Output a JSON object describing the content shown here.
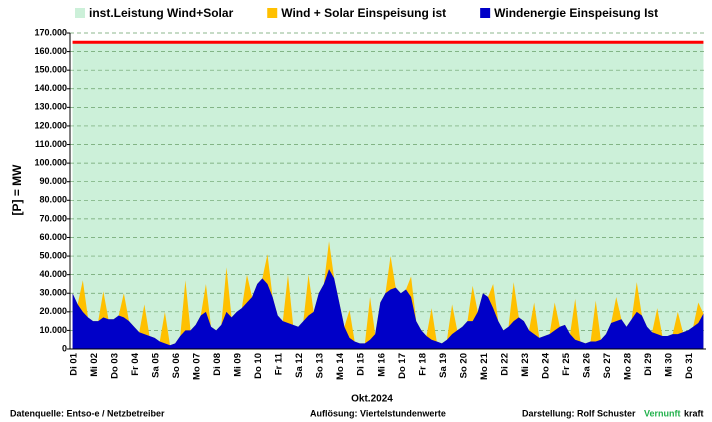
{
  "chart_data": {
    "type": "area",
    "y_label": "[P] =  MW",
    "x_label": "Okt.2024",
    "categories": [
      "Di 01",
      null,
      null,
      null,
      "Mi 02",
      null,
      null,
      null,
      "Do 03",
      null,
      null,
      null,
      "Fr 04",
      null,
      null,
      null,
      "Sa 05",
      null,
      null,
      null,
      "So 06",
      null,
      null,
      null,
      "Mo 07",
      null,
      null,
      null,
      "Di 08",
      null,
      null,
      null,
      "Mi 09",
      null,
      null,
      null,
      "Do 10",
      null,
      null,
      null,
      "Fr 11",
      null,
      null,
      null,
      "Sa 12",
      null,
      null,
      null,
      "So 13",
      null,
      null,
      null,
      "Mo 14",
      null,
      null,
      null,
      "Di 15",
      null,
      null,
      null,
      "Mi 16",
      null,
      null,
      null,
      "Do 17",
      null,
      null,
      null,
      "Fr 18",
      null,
      null,
      null,
      "Sa 19",
      null,
      null,
      null,
      "So 20",
      null,
      null,
      null,
      "Mo 21",
      null,
      null,
      null,
      "Di 22",
      null,
      null,
      null,
      "Mi 23",
      null,
      null,
      null,
      "Do 24",
      null,
      null,
      null,
      "Fr 25",
      null,
      null,
      null,
      "Sa 26",
      null,
      null,
      null,
      "So 27",
      null,
      null,
      null,
      "Mo 28",
      null,
      null,
      null,
      "Di 29",
      null,
      null,
      null,
      "Mi 30",
      null,
      null,
      null,
      "Do 31",
      null,
      null,
      null
    ],
    "series": [
      {
        "name": "inst.Leistung Wind+Solar",
        "color": "#ccf0d9",
        "line_color": "#ff0000",
        "values": [
          165000,
          165000,
          165000,
          165000,
          165000,
          165000,
          165000,
          165000,
          165000,
          165000,
          165000,
          165000,
          165000,
          165000,
          165000,
          165000,
          165000,
          165000,
          165000,
          165000,
          165000,
          165000,
          165000,
          165000,
          165000,
          165000,
          165000,
          165000,
          165000,
          165000,
          165000,
          165000,
          165000,
          165000,
          165000,
          165000,
          165000,
          165000,
          165000,
          165000,
          165000,
          165000,
          165000,
          165000,
          165000,
          165000,
          165000,
          165000,
          165000,
          165000,
          165000,
          165000,
          165000,
          165000,
          165000,
          165000,
          165000,
          165000,
          165000,
          165000,
          165000,
          165000,
          165000,
          165000,
          165000,
          165000,
          165000,
          165000,
          165000,
          165000,
          165000,
          165000,
          165000,
          165000,
          165000,
          165000,
          165000,
          165000,
          165000,
          165000,
          165000,
          165000,
          165000,
          165000,
          165000,
          165000,
          165000,
          165000,
          165000,
          165000,
          165000,
          165000,
          165000,
          165000,
          165000,
          165000,
          165000,
          165000,
          165000,
          165000,
          165000,
          165000,
          165000,
          165000,
          165000,
          165000,
          165000,
          165000,
          165000,
          165000,
          165000,
          165000,
          165000,
          165000,
          165000,
          165000,
          165000,
          165000,
          165000,
          165000,
          165000,
          165000,
          165000,
          165000
        ]
      },
      {
        "name": "Wind + Solar Einspeisung ist",
        "color": "#ffc000",
        "values": [
          30000,
          24000,
          37000,
          17000,
          15000,
          15000,
          31000,
          16000,
          16000,
          18000,
          30000,
          15000,
          12000,
          9000,
          24000,
          7000,
          6000,
          4000,
          20000,
          2000,
          3000,
          7000,
          37000,
          10000,
          13000,
          18000,
          35000,
          12000,
          10000,
          13000,
          44000,
          17000,
          20000,
          22000,
          40000,
          28000,
          35000,
          38000,
          51000,
          28000,
          18000,
          15000,
          40000,
          13000,
          12000,
          15000,
          40000,
          20000,
          30000,
          35000,
          58000,
          38000,
          25000,
          12000,
          21000,
          4000,
          3000,
          3000,
          28000,
          8000,
          25000,
          30000,
          50000,
          33000,
          30000,
          32000,
          39000,
          15000,
          10000,
          7000,
          22000,
          4000,
          3000,
          5000,
          24000,
          10000,
          12000,
          15000,
          34000,
          20000,
          30000,
          28000,
          35000,
          15000,
          10000,
          12000,
          36000,
          17000,
          15000,
          10000,
          25000,
          6000,
          7000,
          8000,
          25000,
          12000,
          13000,
          8000,
          27000,
          4000,
          3000,
          4000,
          26000,
          5000,
          8000,
          14000,
          28000,
          16000,
          12000,
          16000,
          36000,
          18000,
          12000,
          9000,
          22000,
          7000,
          7000,
          8000,
          20000,
          9000,
          10000,
          12000,
          25000,
          19000
        ]
      },
      {
        "name": "Windenergie Einspeisung Ist",
        "color": "#0000c8",
        "values": [
          30000,
          24000,
          20000,
          17000,
          15000,
          15000,
          17000,
          16000,
          16000,
          18000,
          17000,
          15000,
          12000,
          9000,
          8000,
          7000,
          6000,
          4000,
          3000,
          2000,
          3000,
          7000,
          10000,
          10000,
          13000,
          18000,
          20000,
          12000,
          10000,
          13000,
          20000,
          17000,
          20000,
          22000,
          25000,
          28000,
          35000,
          38000,
          35000,
          28000,
          18000,
          15000,
          14000,
          13000,
          12000,
          15000,
          18000,
          20000,
          30000,
          35000,
          43000,
          38000,
          25000,
          12000,
          6000,
          4000,
          3000,
          3000,
          5000,
          8000,
          25000,
          30000,
          32000,
          33000,
          30000,
          32000,
          28000,
          15000,
          10000,
          7000,
          5000,
          4000,
          3000,
          5000,
          8000,
          10000,
          12000,
          15000,
          15000,
          20000,
          30000,
          28000,
          22000,
          15000,
          10000,
          12000,
          15000,
          17000,
          15000,
          10000,
          8000,
          6000,
          7000,
          8000,
          10000,
          12000,
          13000,
          8000,
          5000,
          4000,
          3000,
          4000,
          4000,
          5000,
          8000,
          14000,
          15000,
          16000,
          12000,
          16000,
          20000,
          18000,
          12000,
          9000,
          8000,
          7000,
          7000,
          8000,
          8000,
          9000,
          10000,
          12000,
          14000,
          19000
        ]
      }
    ],
    "ylim": [
      0,
      170000
    ],
    "yticks": [
      0,
      {
        "value": 10000,
        "label": "10.000"
      },
      {
        "value": 20000,
        "label": "20.000"
      },
      {
        "value": 30000,
        "label": "30.000"
      },
      {
        "value": 40000,
        "label": "40.000"
      },
      {
        "value": 50000,
        "label": "50.000"
      },
      {
        "value": 60000,
        "label": "60.000"
      },
      {
        "value": 70000,
        "label": "70.000"
      },
      {
        "value": 80000,
        "label": "80.000"
      },
      {
        "value": 90000,
        "label": "90.000"
      },
      {
        "value": 100000,
        "label": "100.000"
      },
      {
        "value": 110000,
        "label": "110.000"
      },
      {
        "value": 120000,
        "label": "120.000"
      },
      {
        "value": 130000,
        "label": "130.000"
      },
      {
        "value": 140000,
        "label": "140.000"
      },
      {
        "value": 150000,
        "label": "150.000"
      },
      {
        "value": 160000,
        "label": "160.000"
      },
      {
        "value": 170000,
        "label": "170.000"
      }
    ],
    "grid": true,
    "legend": "top"
  },
  "footer": {
    "source": "Datenquelle:  Entso-e  / Netzbetreiber",
    "resolution": "Auflösung: Viertelstundenwerte",
    "author": "Darstellung:  Rolf Schuster",
    "brand_1": "Vernunft",
    "brand_2": "kraft"
  }
}
